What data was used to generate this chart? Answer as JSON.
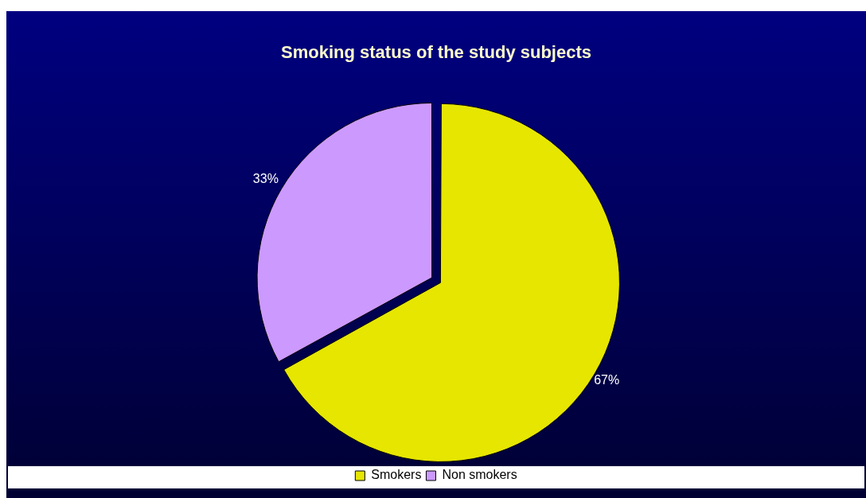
{
  "chart_data": {
    "type": "pie",
    "title": "Smoking status of the study subjects",
    "categories": [
      "Smokers",
      "Non smokers"
    ],
    "values": [
      67,
      33
    ],
    "colors": [
      "#e6e600",
      "#cc99ff"
    ],
    "value_labels": [
      "67%",
      "33%"
    ],
    "legend": "bottom"
  }
}
